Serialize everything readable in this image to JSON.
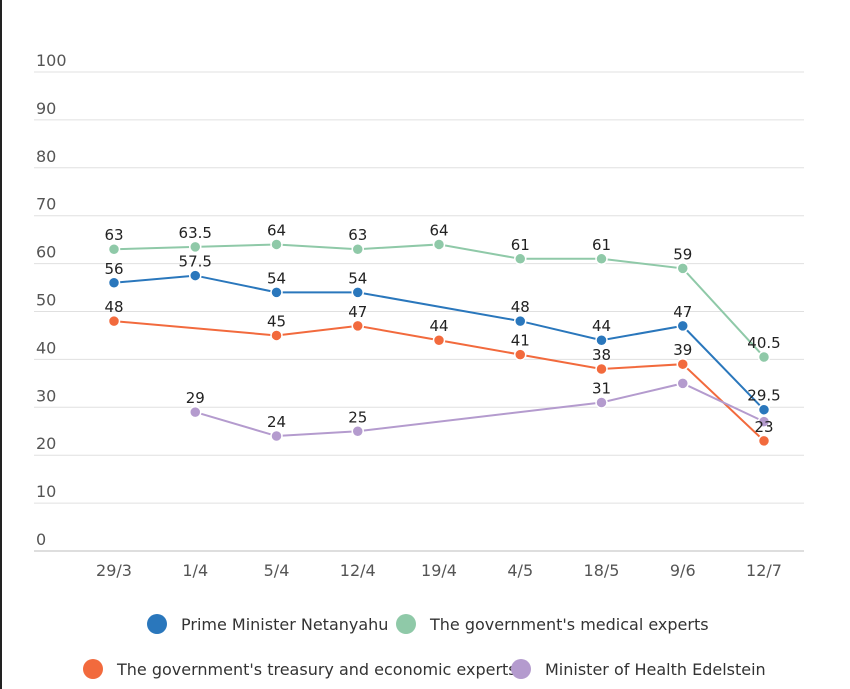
{
  "chart_data": {
    "type": "line",
    "categories": [
      "29/3",
      "1/4",
      "5/4",
      "12/4",
      "19/4",
      "4/5",
      "18/5",
      "9/6",
      "12/7"
    ],
    "ylim": [
      0,
      100
    ],
    "yticks": [
      "0",
      "10",
      "20",
      "30",
      "40",
      "50",
      "60",
      "70",
      "80",
      "90",
      "100"
    ],
    "grid": true,
    "legend_position": "bottom",
    "series": [
      {
        "name": "Prime Minister Netanyahu",
        "color": "#2a77bc",
        "values": [
          56,
          57.5,
          54,
          54,
          null,
          48,
          44,
          47,
          29.5
        ],
        "labels": [
          "56",
          "57.5",
          "54",
          "54",
          "",
          "48",
          "44",
          "47",
          "29.5"
        ]
      },
      {
        "name": "The government's medical experts",
        "color": "#8fc9a8",
        "values": [
          63,
          63.5,
          64,
          63,
          64,
          61,
          61,
          59,
          40.5
        ],
        "labels": [
          "63",
          "63.5",
          "64",
          "63",
          "64",
          "61",
          "61",
          "59",
          "40.5"
        ]
      },
      {
        "name": "The government's treasury and economic experts",
        "color": "#f26a3d",
        "values": [
          48,
          null,
          45,
          47,
          44,
          41,
          38,
          39,
          23
        ],
        "labels": [
          "48",
          "",
          "45",
          "47",
          "44",
          "41",
          "38",
          "39",
          "23"
        ]
      },
      {
        "name": "Minister of Health Edelstein",
        "color": "#b49bce",
        "values": [
          null,
          29,
          24,
          25,
          null,
          null,
          31,
          35,
          27
        ],
        "labels": [
          "",
          "29",
          "24",
          "25",
          "",
          "",
          "31",
          "",
          ""
        ]
      }
    ]
  }
}
